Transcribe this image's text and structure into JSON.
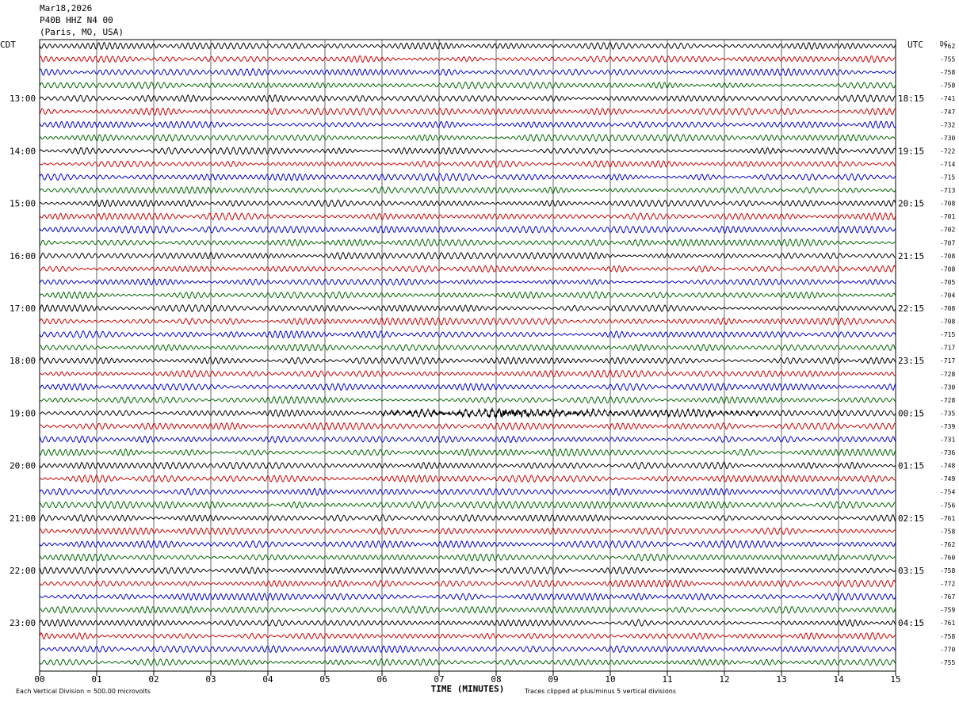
{
  "header": {
    "date": "Mar18,2026",
    "station": "P40B HHZ N4 00",
    "location": "(Paris, MO, USA)"
  },
  "left_axis_label": "CDT",
  "right_axis_label": "UTC",
  "dc_label": "DC",
  "colors": [
    "#000000",
    "#cc0000",
    "#0000cc",
    "#006600"
  ],
  "chart_data": {
    "type": "line",
    "title": "",
    "xlabel": "TIME (MINUTES)",
    "xlim": [
      0,
      15
    ],
    "x_ticks": [
      "00",
      "01",
      "02",
      "03",
      "04",
      "05",
      "06",
      "07",
      "08",
      "09",
      "10",
      "11",
      "12",
      "13",
      "14",
      "15"
    ],
    "rows_per_hour": 4,
    "left_hour_labels": [
      {
        "row": 4,
        "label": "13:00"
      },
      {
        "row": 8,
        "label": "14:00"
      },
      {
        "row": 12,
        "label": "15:00"
      },
      {
        "row": 16,
        "label": "16:00"
      },
      {
        "row": 20,
        "label": "17:00"
      },
      {
        "row": 24,
        "label": "18:00"
      },
      {
        "row": 28,
        "label": "19:00"
      },
      {
        "row": 32,
        "label": "20:00"
      },
      {
        "row": 36,
        "label": "21:00"
      },
      {
        "row": 40,
        "label": "22:00"
      },
      {
        "row": 44,
        "label": "23:00"
      }
    ],
    "right_hour_labels": [
      {
        "row": 4,
        "label": "18:15"
      },
      {
        "row": 8,
        "label": "19:15"
      },
      {
        "row": 12,
        "label": "20:15"
      },
      {
        "row": 16,
        "label": "21:15"
      },
      {
        "row": 20,
        "label": "22:15"
      },
      {
        "row": 24,
        "label": "23:15"
      },
      {
        "row": 28,
        "label": "00:15"
      },
      {
        "row": 32,
        "label": "01:15"
      },
      {
        "row": 36,
        "label": "02:15"
      },
      {
        "row": 40,
        "label": "03:15"
      },
      {
        "row": 44,
        "label": "04:15"
      }
    ],
    "dc_offsets": [
      "-762",
      "-755",
      "-758",
      "-758",
      "-741",
      "-747",
      "-732",
      "-730",
      "-722",
      "-714",
      "-715",
      "-713",
      "-708",
      "-701",
      "-702",
      "-707",
      "-708",
      "-708",
      "-705",
      "-704",
      "-708",
      "-708",
      "-715",
      "-717",
      "-717",
      "-728",
      "-730",
      "-728",
      "-735",
      "-739",
      "-731",
      "-736",
      "-748",
      "-749",
      "-754",
      "-756",
      "-761",
      "-758",
      "-762",
      "-760",
      "-758",
      "-772",
      "-767",
      "-759",
      "-761",
      "-758",
      "-770",
      "-755"
    ],
    "event": {
      "row": 28,
      "start_min": 6.0,
      "end_min": 12.6,
      "peak_min": 8.15
    }
  },
  "footer": {
    "vertical_division": "Each Vertical Division =  500.00 microvolts",
    "clip_note": "Traces clipped at plus/minus 5 vertical divisions"
  }
}
